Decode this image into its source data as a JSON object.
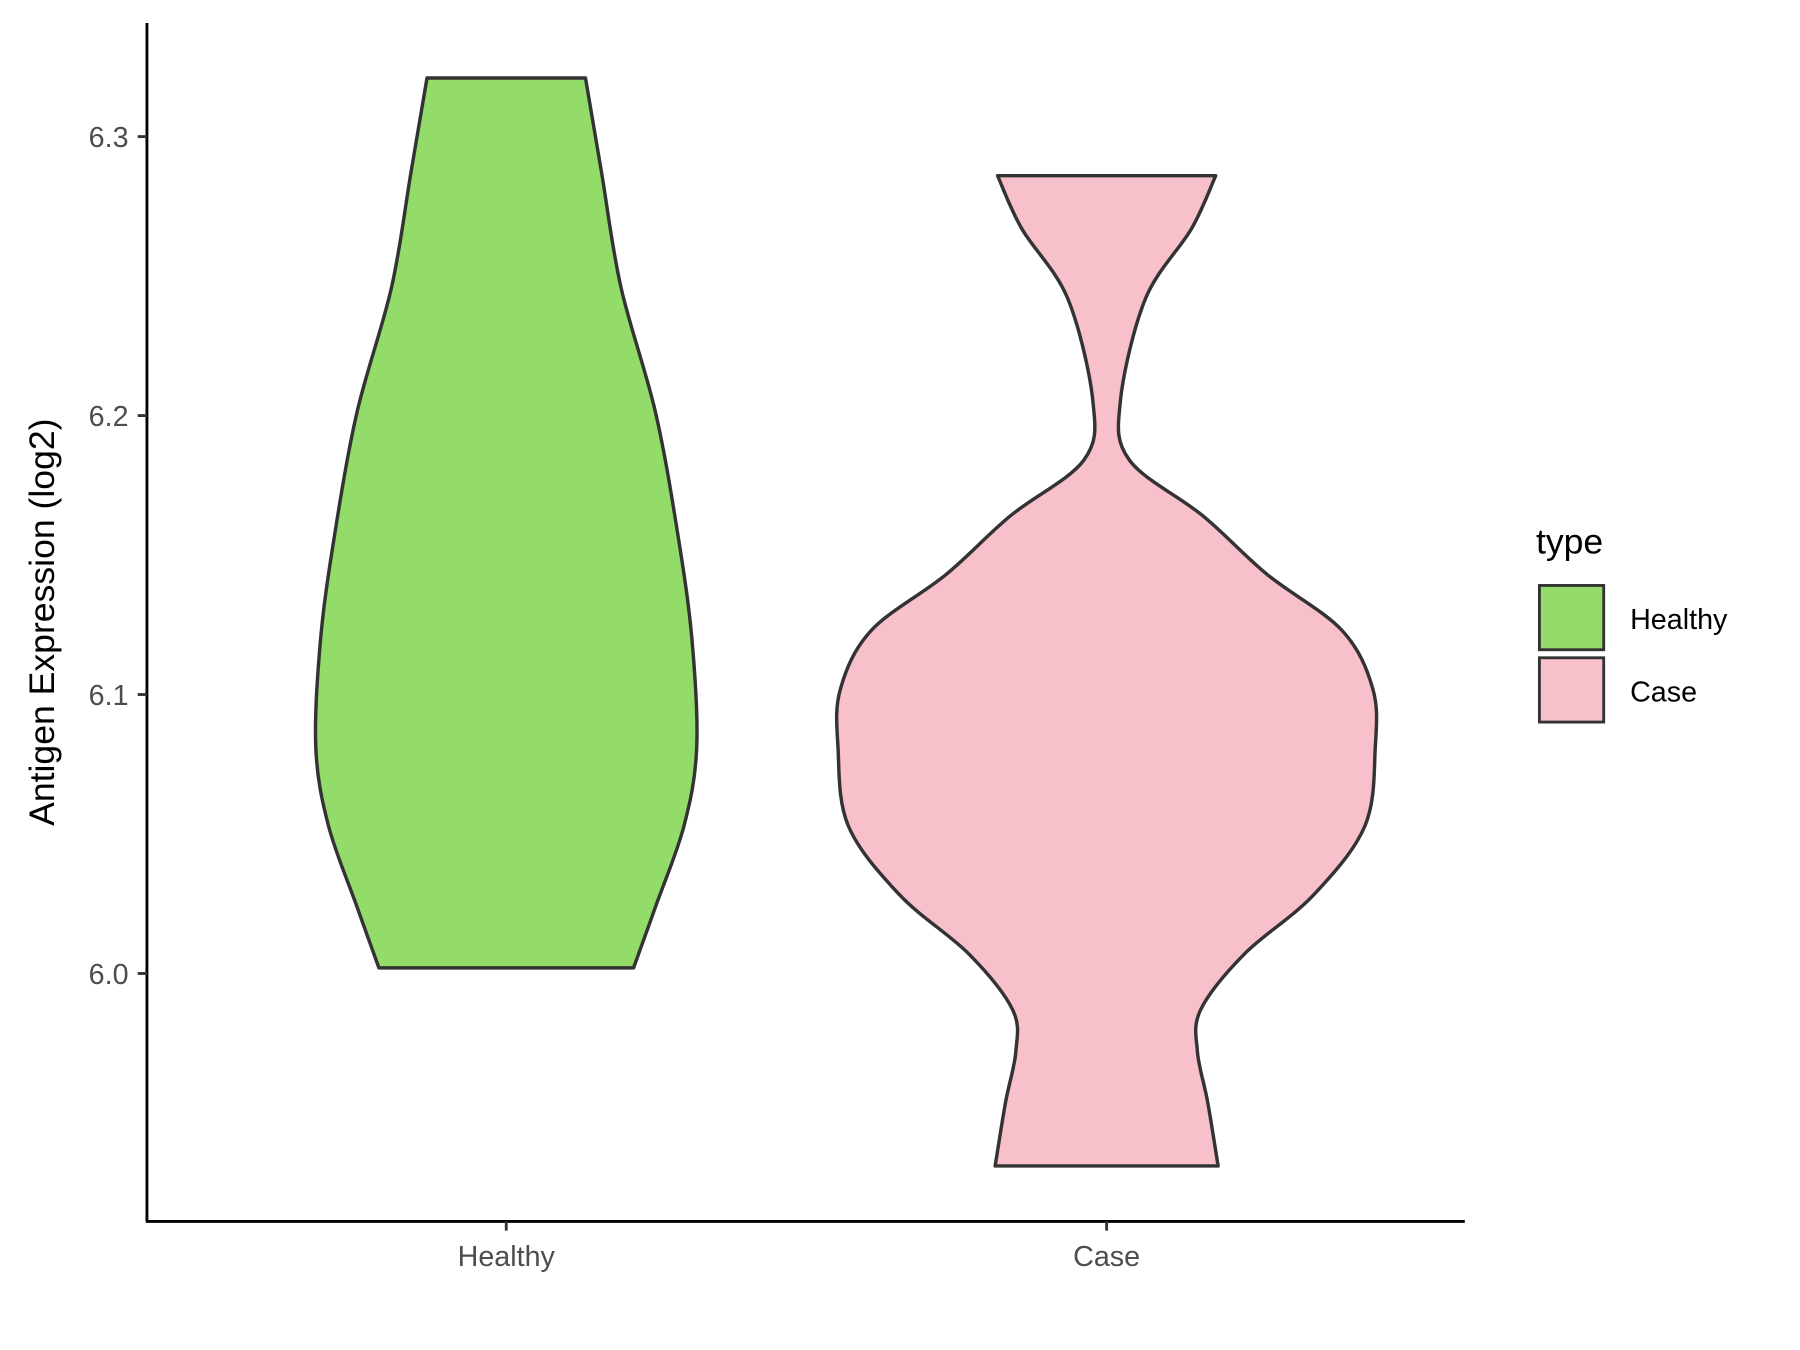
{
  "chart_data": {
    "type": "violin",
    "title": "",
    "xlabel": "",
    "ylabel": "Antigen Expression (log2)",
    "ylim": [
      5.912,
      6.343
    ],
    "yticks": [
      "6.0",
      "6.1",
      "6.2",
      "6.3"
    ],
    "ytick_values": [
      6.0,
      6.1,
      6.2,
      6.3
    ],
    "categories": [
      "Healthy",
      "Case"
    ],
    "grid": false,
    "legend": {
      "title": "type",
      "placement": "right",
      "entries": [
        "Healthy",
        "Case"
      ]
    },
    "series": [
      {
        "name": "Healthy",
        "color": "#93DC6A",
        "min": 6.002,
        "max": 6.321,
        "profile": [
          [
            6.321,
            0.295
          ],
          [
            6.287,
            0.355
          ],
          [
            6.246,
            0.427
          ],
          [
            6.201,
            0.556
          ],
          [
            6.156,
            0.641
          ],
          [
            6.119,
            0.692
          ],
          [
            6.081,
            0.709
          ],
          [
            6.053,
            0.662
          ],
          [
            6.024,
            0.556
          ],
          [
            6.002,
            0.474
          ]
        ]
      },
      {
        "name": "Case",
        "color": "#F8C0CB",
        "min": 5.931,
        "max": 6.286,
        "profile": [
          [
            6.286,
            0.406
          ],
          [
            6.267,
            0.316
          ],
          [
            6.242,
            0.145
          ],
          [
            6.205,
            0.051
          ],
          [
            6.184,
            0.085
          ],
          [
            6.164,
            0.359
          ],
          [
            6.143,
            0.598
          ],
          [
            6.123,
            0.876
          ],
          [
            6.102,
            0.991
          ],
          [
            6.081,
            1.0
          ],
          [
            6.053,
            0.962
          ],
          [
            6.028,
            0.769
          ],
          [
            6.007,
            0.513
          ],
          [
            5.987,
            0.35
          ],
          [
            5.972,
            0.338
          ],
          [
            5.954,
            0.376
          ],
          [
            5.931,
            0.415
          ]
        ]
      }
    ],
    "outline_color": "#333333"
  }
}
